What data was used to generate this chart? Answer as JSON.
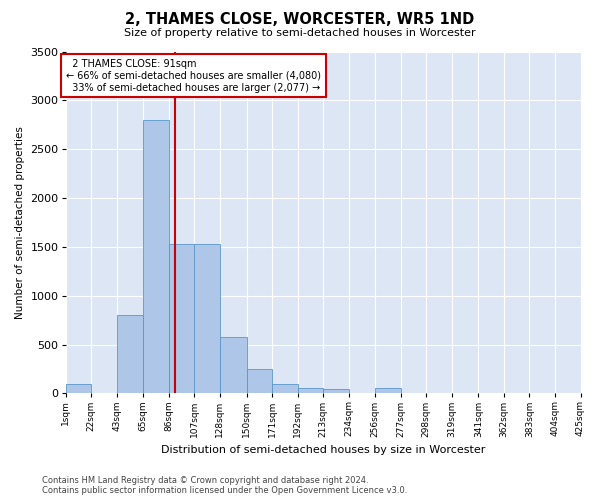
{
  "title": "2, THAMES CLOSE, WORCESTER, WR5 1ND",
  "subtitle": "Size of property relative to semi-detached houses in Worcester",
  "xlabel": "Distribution of semi-detached houses by size in Worcester",
  "ylabel": "Number of semi-detached properties",
  "property_label": "2 THAMES CLOSE: 91sqm",
  "pct_smaller": 66,
  "n_smaller": 4080,
  "pct_larger": 33,
  "n_larger": 2077,
  "bin_edges": [
    1,
    22,
    43,
    65,
    86,
    107,
    128,
    150,
    171,
    192,
    213,
    234,
    256,
    277,
    298,
    319,
    341,
    362,
    383,
    404,
    425
  ],
  "bin_labels": [
    "1sqm",
    "22sqm",
    "43sqm",
    "65sqm",
    "86sqm",
    "107sqm",
    "128sqm",
    "150sqm",
    "171sqm",
    "192sqm",
    "213sqm",
    "234sqm",
    "256sqm",
    "277sqm",
    "298sqm",
    "319sqm",
    "341sqm",
    "362sqm",
    "383sqm",
    "404sqm",
    "425sqm"
  ],
  "bar_heights": [
    100,
    0,
    800,
    2800,
    1530,
    1530,
    580,
    250,
    100,
    50,
    40,
    0,
    50,
    0,
    0,
    0,
    0,
    0,
    0,
    0
  ],
  "bar_color": "#aec6e8",
  "bar_edge_color": "#5b96c8",
  "vline_color": "#cc0000",
  "vline_x": 91,
  "ylim": [
    0,
    3500
  ],
  "yticks": [
    0,
    500,
    1000,
    1500,
    2000,
    2500,
    3000,
    3500
  ],
  "bg_color": "#dce6f5",
  "annotation_box_facecolor": "#ffffff",
  "annotation_box_edgecolor": "#cc0000",
  "footer": "Contains HM Land Registry data © Crown copyright and database right 2024.\nContains public sector information licensed under the Open Government Licence v3.0."
}
